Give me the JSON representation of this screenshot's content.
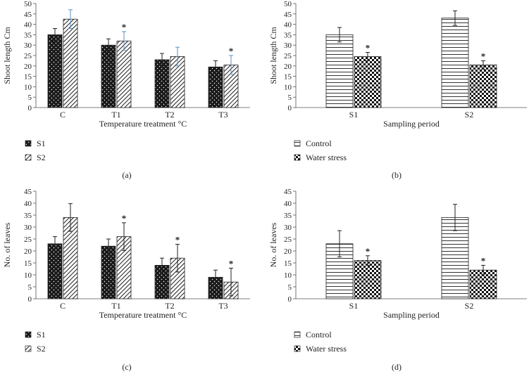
{
  "chart_data": [
    {
      "panel": "(a)",
      "type": "bar",
      "ylabel": "Shoot length Cm",
      "xlabel": "Temperature treatment °C",
      "ylim": [
        0,
        50
      ],
      "yticks": [
        0,
        5,
        10,
        15,
        20,
        25,
        30,
        35,
        40,
        45,
        50
      ],
      "categories": [
        "C",
        "T1",
        "T2",
        "T3"
      ],
      "series": [
        {
          "name": "S1",
          "pattern": "dots",
          "values": [
            35,
            30,
            23,
            19.5
          ],
          "errors": [
            3,
            3,
            3,
            3
          ],
          "error_color": "#222222",
          "stars": [
            false,
            false,
            false,
            false
          ]
        },
        {
          "name": "S2",
          "pattern": "diag",
          "values": [
            42.5,
            32,
            24.5,
            20.5
          ],
          "errors": [
            4.5,
            4.5,
            4.5,
            4.5
          ],
          "error_color": "#5b8fc7",
          "stars": [
            false,
            true,
            false,
            true
          ]
        }
      ]
    },
    {
      "panel": "(b)",
      "type": "bar",
      "ylabel": "Shoot length Cm",
      "xlabel": "Sampling period",
      "ylim": [
        0,
        50
      ],
      "yticks": [
        0,
        5,
        10,
        15,
        20,
        25,
        30,
        35,
        40,
        45,
        50
      ],
      "categories": [
        "S1",
        "S2"
      ],
      "series": [
        {
          "name": "Control",
          "pattern": "hlines",
          "values": [
            35,
            43
          ],
          "errors": [
            3.5,
            3.5
          ],
          "error_color": "#222222",
          "stars": [
            false,
            false
          ]
        },
        {
          "name": "Water stress",
          "pattern": "checker",
          "values": [
            24.5,
            20.5
          ],
          "errors": [
            2,
            2
          ],
          "error_color": "#222222",
          "stars": [
            true,
            true
          ]
        }
      ]
    },
    {
      "panel": "(c)",
      "type": "bar",
      "ylabel": "No. of leaves",
      "xlabel": "Temperature treatment °C",
      "ylim": [
        0,
        45
      ],
      "yticks": [
        0,
        5,
        10,
        15,
        20,
        25,
        30,
        35,
        40,
        45
      ],
      "categories": [
        "C",
        "T1",
        "T2",
        "T3"
      ],
      "series": [
        {
          "name": "S1",
          "pattern": "dots",
          "values": [
            23,
            22,
            14,
            9
          ],
          "errors": [
            3,
            3,
            3,
            3
          ],
          "error_color": "#222222",
          "stars": [
            false,
            false,
            false,
            false
          ]
        },
        {
          "name": "S2",
          "pattern": "diag",
          "values": [
            34,
            26,
            17,
            7
          ],
          "errors": [
            5.8,
            5.8,
            5.8,
            5.8
          ],
          "error_color": "#222222",
          "stars": [
            false,
            true,
            true,
            true
          ]
        }
      ]
    },
    {
      "panel": "(d)",
      "type": "bar",
      "ylabel": "No. of leaves",
      "xlabel": "Sampling period",
      "ylim": [
        0,
        45
      ],
      "yticks": [
        0,
        5,
        10,
        15,
        20,
        25,
        30,
        35,
        40,
        45
      ],
      "categories": [
        "S1",
        "S2"
      ],
      "series": [
        {
          "name": "Control",
          "pattern": "hlines",
          "values": [
            23,
            34
          ],
          "errors": [
            5.5,
            5.5
          ],
          "error_color": "#222222",
          "stars": [
            false,
            false
          ]
        },
        {
          "name": "Water stress",
          "pattern": "checker",
          "values": [
            16,
            12
          ],
          "errors": [
            2,
            2
          ],
          "error_color": "#222222",
          "stars": [
            true,
            true
          ]
        }
      ]
    }
  ],
  "star_symbol": "*"
}
